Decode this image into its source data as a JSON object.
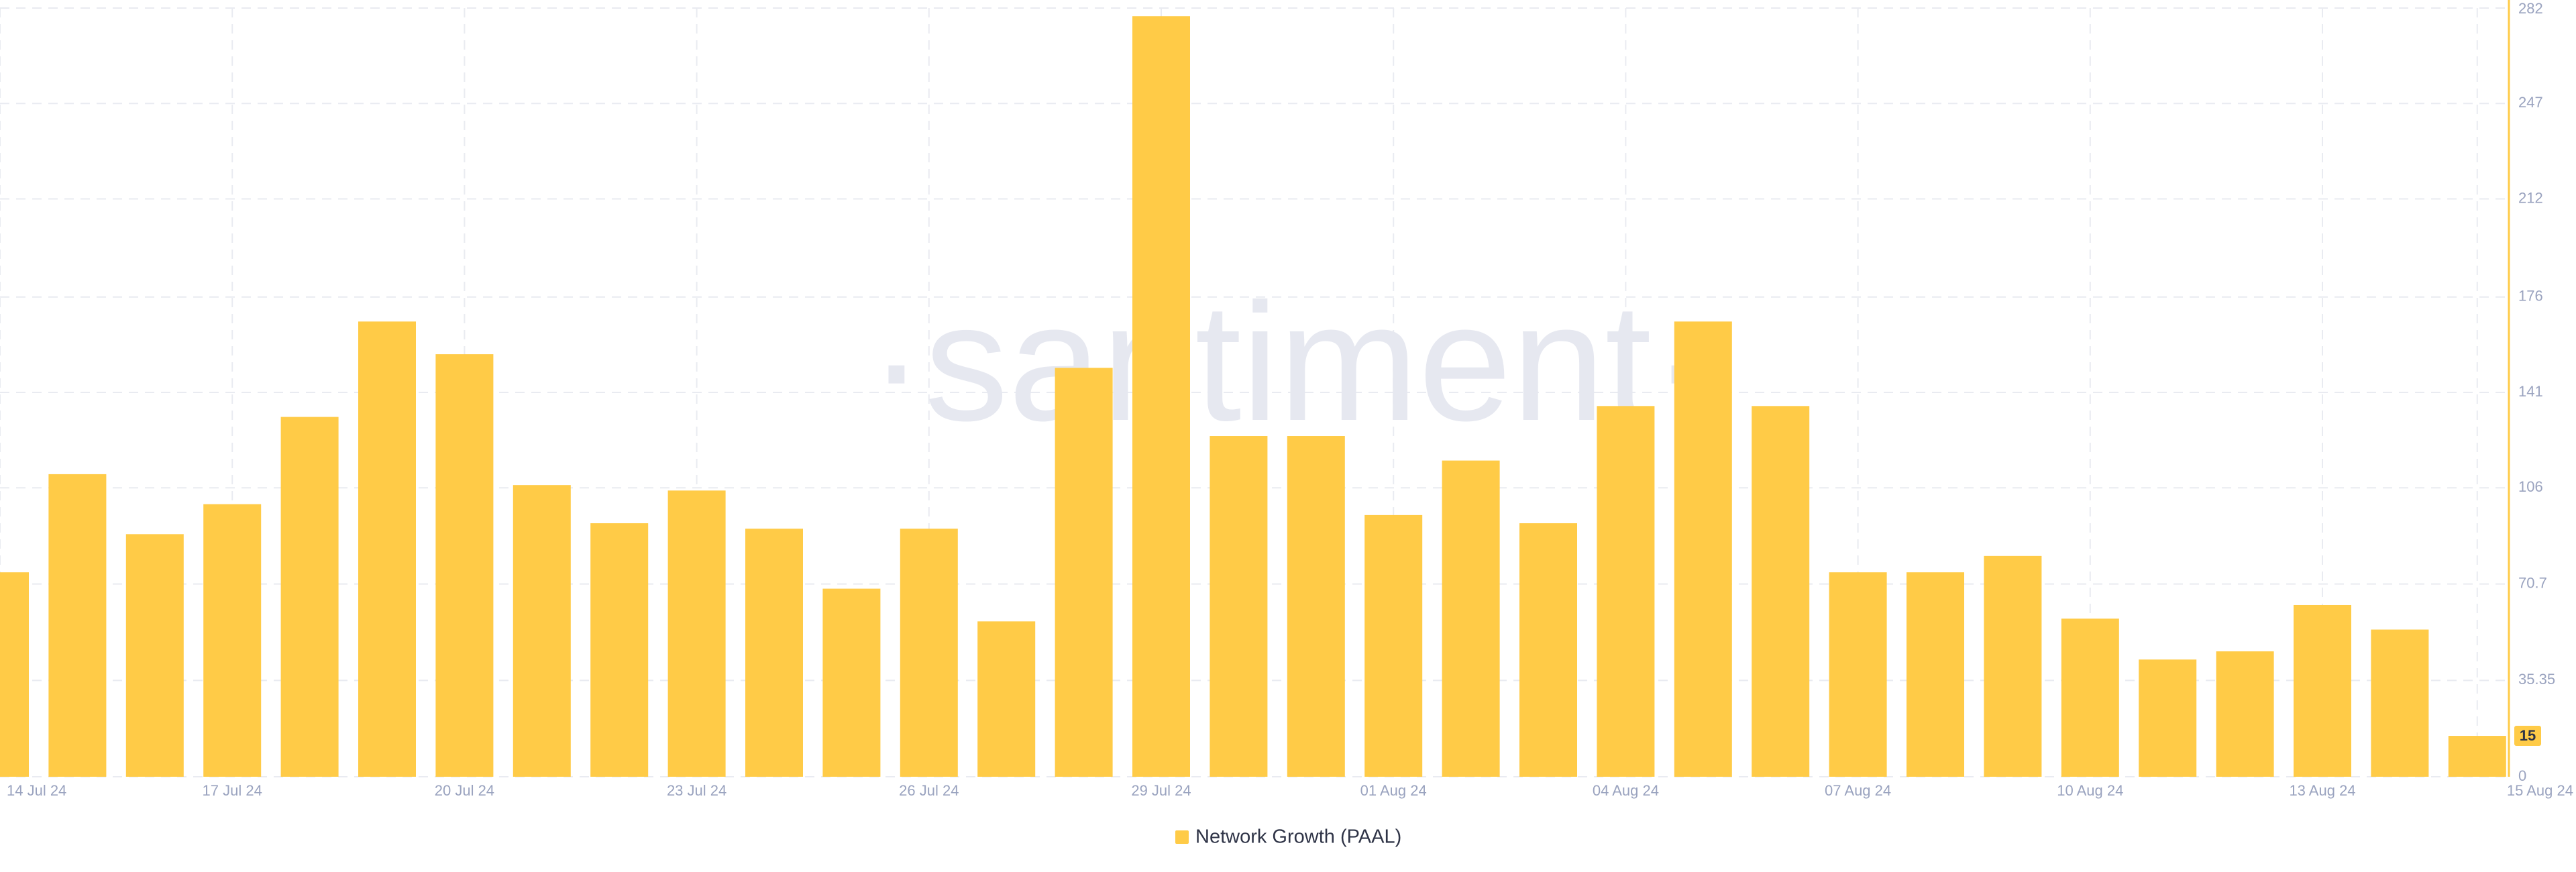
{
  "chart_data": {
    "type": "bar",
    "watermark": "·santiment·",
    "categories": [
      "14 Jul 24",
      null,
      null,
      "17 Jul 24",
      null,
      null,
      "20 Jul 24",
      null,
      null,
      "23 Jul 24",
      null,
      null,
      "26 Jul 24",
      null,
      null,
      "29 Jul 24",
      null,
      null,
      "01 Aug 24",
      null,
      null,
      "04 Aug 24",
      null,
      null,
      "07 Aug 24",
      null,
      null,
      "10 Aug 24",
      null,
      null,
      "13 Aug 24",
      null,
      "15 Aug 24"
    ],
    "series": [
      {
        "name": "Network Growth (PAAL)",
        "color": "#ffcb47",
        "values": [
          75,
          111,
          89,
          100,
          132,
          167,
          155,
          107,
          93,
          105,
          91,
          69,
          91,
          57,
          150,
          279,
          125,
          125,
          96,
          116,
          93,
          136,
          167,
          136,
          75,
          75,
          81,
          58,
          43,
          46,
          63,
          54,
          15
        ]
      }
    ],
    "ylim": [
      0,
      282
    ],
    "yticks": [
      0,
      35.35,
      70.7,
      106,
      141,
      176,
      212,
      247,
      282
    ],
    "grid": true
  }
}
